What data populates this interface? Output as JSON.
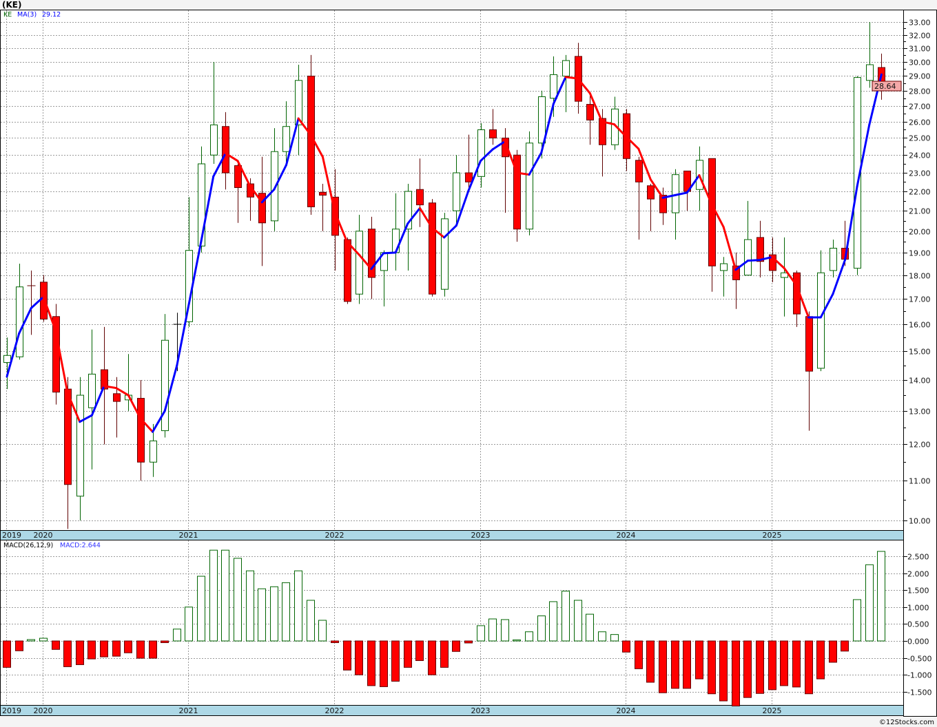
{
  "header": {
    "title": "(KE)"
  },
  "legend": {
    "symbol": "KE",
    "ma_label": "MA(3)",
    "ma_value": "29.12"
  },
  "macd_legend": {
    "label": "MACD(26,12,9)",
    "value": "MACD:2.644"
  },
  "last_price_label": "28.64",
  "copyright": "©12Stocks.com",
  "colors": {
    "up": "#006400",
    "down_fill": "#ff0000",
    "down_stroke": "#600000",
    "ma_up": "#0000ff",
    "ma_down": "#ff0000",
    "axis_band": "#add8e6",
    "price_box": "#f4a8a8"
  },
  "chart_data": [
    {
      "type": "candlestick",
      "title": "KE monthly",
      "scale": "log",
      "ylim": [
        9.8,
        33.3
      ],
      "x_year_labels": [
        {
          "label": "2019",
          "index": 0
        },
        {
          "label": "2020",
          "index": 3
        },
        {
          "label": "2021",
          "index": 15
        },
        {
          "label": "2022",
          "index": 27
        },
        {
          "label": "2023",
          "index": 39
        },
        {
          "label": "2024",
          "index": 51
        },
        {
          "label": "2025",
          "index": 63
        }
      ],
      "y_ticks": [
        "10.00",
        "11.00",
        "12.00",
        "13.00",
        "14.00",
        "15.00",
        "16.00",
        "17.00",
        "18.00",
        "19.00",
        "20.00",
        "21.00",
        "22.00",
        "23.00",
        "24.00",
        "25.00",
        "26.00",
        "27.00",
        "28.00",
        "29.00",
        "30.00",
        "31.00",
        "32.00",
        "33.00"
      ],
      "ma_period": 3,
      "prior_closes": [
        12.9,
        14.6
      ],
      "ohlc": [
        [
          14.6,
          14.85,
          15.5,
          13.7
        ],
        [
          14.8,
          17.5,
          18.5,
          14.7
        ],
        [
          17.55,
          17.55,
          18.2,
          15.6
        ],
        [
          17.7,
          16.2,
          18.0,
          16.1
        ],
        [
          16.3,
          13.6,
          16.8,
          13.2
        ],
        [
          13.7,
          10.9,
          14.1,
          9.8
        ],
        [
          10.6,
          13.5,
          14.1,
          10.0
        ],
        [
          13.1,
          14.2,
          15.8,
          11.3
        ],
        [
          14.35,
          13.7,
          15.9,
          12.0
        ],
        [
          13.55,
          13.3,
          14.1,
          12.2
        ],
        [
          13.35,
          13.5,
          14.9,
          13.0
        ],
        [
          13.4,
          11.5,
          14.0,
          11.0
        ],
        [
          11.5,
          12.1,
          12.6,
          11.1
        ],
        [
          12.4,
          15.4,
          16.4,
          12.2
        ],
        [
          16.0,
          16.0,
          16.45,
          14.3
        ],
        [
          16.1,
          19.1,
          21.7,
          15.9
        ],
        [
          19.3,
          23.5,
          24.5,
          19.0
        ],
        [
          24.0,
          25.8,
          30.0,
          23.5
        ],
        [
          25.7,
          23.0,
          26.6,
          22.1
        ],
        [
          23.4,
          22.2,
          23.5,
          20.4
        ],
        [
          22.4,
          21.7,
          22.7,
          20.5
        ],
        [
          21.9,
          20.4,
          23.9,
          18.4
        ],
        [
          20.5,
          24.2,
          25.6,
          20.0
        ],
        [
          24.2,
          25.7,
          27.3,
          23.6
        ],
        [
          25.8,
          28.7,
          29.8,
          24.0
        ],
        [
          29.0,
          21.2,
          30.5,
          20.8
        ],
        [
          21.95,
          21.8,
          22.4,
          20.0
        ],
        [
          21.7,
          19.8,
          23.2,
          18.2
        ],
        [
          19.6,
          16.9,
          19.7,
          16.8
        ],
        [
          17.2,
          20.0,
          20.8,
          16.8
        ],
        [
          20.1,
          17.9,
          20.7,
          17.0
        ],
        [
          18.2,
          19.0,
          19.1,
          16.7
        ],
        [
          19.0,
          20.1,
          21.9,
          18.2
        ],
        [
          20.1,
          22.0,
          22.4,
          18.2
        ],
        [
          22.1,
          21.3,
          23.8,
          20.2
        ],
        [
          21.4,
          17.2,
          21.6,
          17.1
        ],
        [
          17.4,
          20.6,
          20.9,
          17.1
        ],
        [
          21.0,
          23.0,
          24.0,
          20.3
        ],
        [
          23.0,
          22.5,
          25.2,
          22.2
        ],
        [
          22.8,
          25.5,
          25.9,
          22.2
        ],
        [
          25.5,
          25.0,
          26.8,
          24.6
        ],
        [
          25.0,
          23.9,
          25.6,
          20.9
        ],
        [
          24.0,
          20.1,
          24.3,
          19.5
        ],
        [
          20.1,
          24.7,
          25.4,
          19.8
        ],
        [
          24.7,
          27.6,
          28.0,
          23.8
        ],
        [
          27.5,
          29.1,
          30.4,
          26.3
        ],
        [
          29.0,
          30.1,
          30.5,
          26.6
        ],
        [
          30.4,
          27.3,
          31.4,
          26.5
        ],
        [
          27.1,
          26.1,
          27.8,
          24.6
        ],
        [
          26.2,
          24.6,
          26.8,
          22.8
        ],
        [
          24.6,
          26.8,
          27.6,
          24.3
        ],
        [
          26.5,
          23.8,
          26.8,
          23.1
        ],
        [
          23.7,
          22.5,
          23.9,
          19.6
        ],
        [
          22.3,
          21.6,
          22.4,
          20.0
        ],
        [
          21.8,
          20.9,
          22.2,
          20.3
        ],
        [
          20.9,
          22.9,
          23.2,
          19.6
        ],
        [
          23.1,
          22.0,
          23.1,
          21.0
        ],
        [
          22.1,
          23.7,
          24.5,
          21.0
        ],
        [
          23.8,
          18.4,
          23.8,
          17.3
        ],
        [
          18.2,
          18.5,
          18.8,
          17.1
        ],
        [
          18.4,
          17.8,
          19.0,
          16.6
        ],
        [
          18.0,
          19.6,
          21.5,
          18.0
        ],
        [
          19.7,
          18.6,
          20.5,
          17.9
        ],
        [
          18.9,
          18.2,
          19.7,
          17.7
        ],
        [
          17.9,
          18.1,
          19.7,
          16.3
        ],
        [
          18.1,
          16.4,
          18.2,
          15.9
        ],
        [
          16.3,
          14.3,
          16.5,
          12.4
        ],
        [
          14.4,
          18.1,
          19.1,
          14.3
        ],
        [
          18.2,
          19.2,
          19.6,
          17.9
        ],
        [
          19.2,
          18.7,
          20.5,
          18.4
        ],
        [
          18.3,
          28.9,
          29.0,
          18.0
        ],
        [
          28.7,
          29.8,
          33.0,
          28.2
        ],
        [
          29.6,
          28.64,
          30.6,
          27.4
        ]
      ]
    },
    {
      "type": "bar",
      "title": "MACD(26,12,9)",
      "ylim": [
        -1.92,
        2.9
      ],
      "y_ticks": [
        "2.500",
        "2.000",
        "1.500",
        "1.000",
        "0.500",
        "0.000",
        "-0.500",
        "-1.000",
        "-1.500"
      ],
      "values": [
        -0.78,
        -0.29,
        0.04,
        0.08,
        -0.25,
        -0.76,
        -0.7,
        -0.53,
        -0.47,
        -0.45,
        -0.35,
        -0.51,
        -0.51,
        -0.05,
        0.35,
        1.0,
        1.91,
        2.68,
        2.68,
        2.44,
        2.07,
        1.54,
        1.6,
        1.72,
        2.07,
        1.2,
        0.61,
        -0.05,
        -0.86,
        -1.0,
        -1.32,
        -1.35,
        -1.19,
        -0.78,
        -0.58,
        -1.0,
        -0.78,
        -0.31,
        -0.06,
        0.45,
        0.65,
        0.63,
        0.03,
        0.27,
        0.74,
        1.16,
        1.47,
        1.2,
        0.79,
        0.27,
        0.19,
        -0.33,
        -0.82,
        -1.22,
        -1.53,
        -1.4,
        -1.4,
        -1.12,
        -1.56,
        -1.77,
        -1.92,
        -1.67,
        -1.55,
        -1.44,
        -1.32,
        -1.36,
        -1.56,
        -1.12,
        -0.63,
        -0.3,
        1.22,
        2.25,
        2.644
      ]
    }
  ]
}
